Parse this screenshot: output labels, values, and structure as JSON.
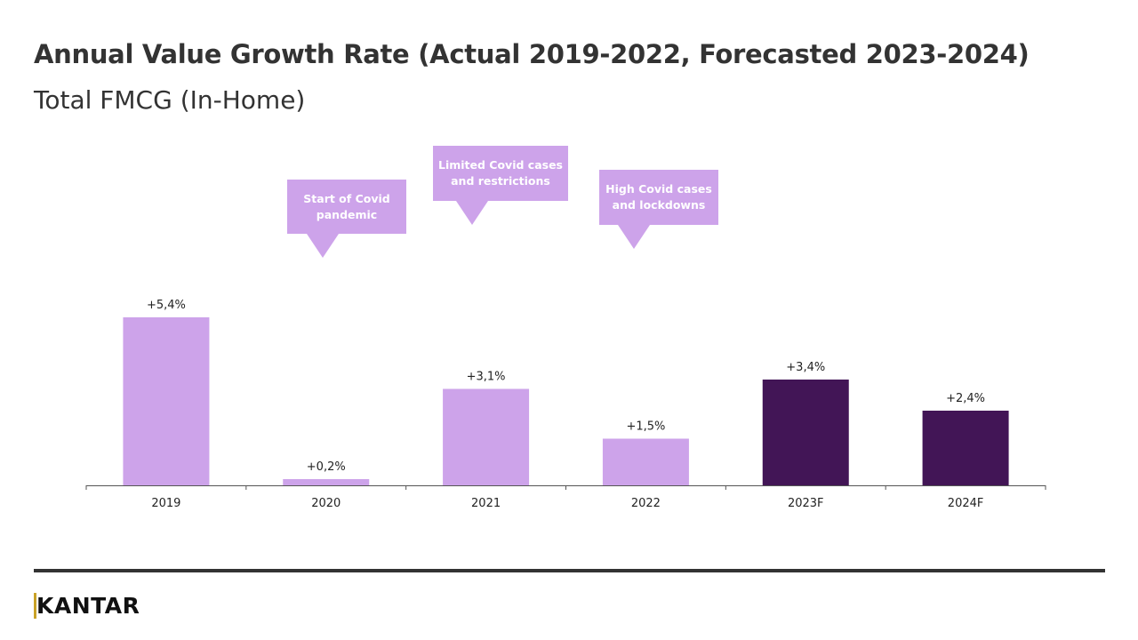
{
  "header": {
    "title": "Annual Value Growth Rate  (Actual 2019-2022, Forecasted 2023-2024)",
    "subtitle": "Total FMCG (In-Home)"
  },
  "chart_data": {
    "type": "bar",
    "categories": [
      "2019",
      "2020",
      "2021",
      "2022",
      "2023F",
      "2024F"
    ],
    "values": [
      5.4,
      0.2,
      3.1,
      1.5,
      3.4,
      2.4
    ],
    "data_labels": [
      "+5,4%",
      "+0,2%",
      "+3,1%",
      "+1,5%",
      "+3,4%",
      "+2,4%"
    ],
    "colors": [
      "#cda3ea",
      "#cda3ea",
      "#cda3ea",
      "#cda3ea",
      "#421556",
      "#421556"
    ],
    "ylim": [
      0,
      5.4
    ],
    "grid": false,
    "annotations": [
      "Start of Covid\npandemic",
      "Limited Covid cases\nand restrictions",
      "High Covid cases\nand lockdowns"
    ]
  },
  "footer": {
    "logo": "KANTAR"
  }
}
